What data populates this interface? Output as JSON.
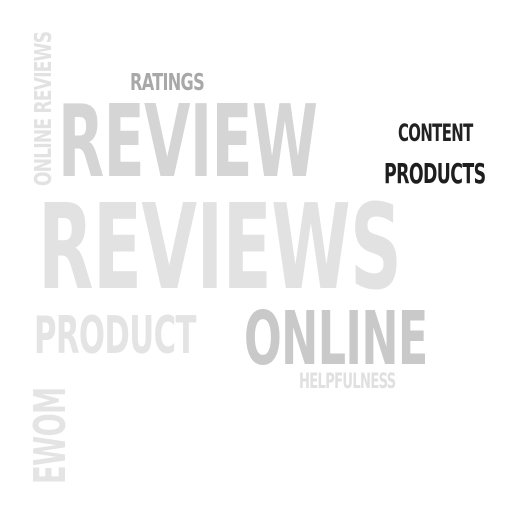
{
  "word_cloud": {
    "words": {
      "reviews": "REVIEWS",
      "review": "REVIEW",
      "online": "ONLINE",
      "product": "PRODUCT",
      "ratings": "RATINGS",
      "content": "CONTENT",
      "products": "PRODUCTS",
      "helpfulness": "HELPFULNESS",
      "online_reviews": "ONLINE REVIEWS",
      "ewom": "EWOM"
    },
    "colors": {
      "background": "#ffffff",
      "light_gray": "#e2e2e2",
      "mid_gray": "#c9c9c9",
      "dark_gray": "#a8a8a8",
      "near_black": "#222222"
    }
  }
}
